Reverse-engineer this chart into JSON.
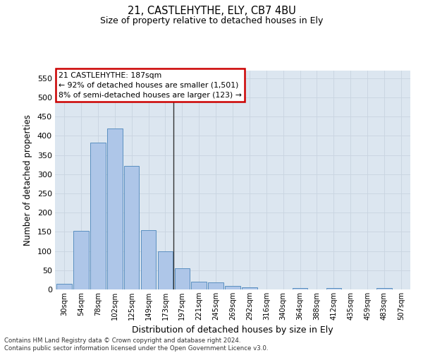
{
  "title1": "21, CASTLEHYTHE, ELY, CB7 4BU",
  "title2": "Size of property relative to detached houses in Ely",
  "xlabel": "Distribution of detached houses by size in Ely",
  "ylabel": "Number of detached properties",
  "categories": [
    "30sqm",
    "54sqm",
    "78sqm",
    "102sqm",
    "125sqm",
    "149sqm",
    "173sqm",
    "197sqm",
    "221sqm",
    "245sqm",
    "269sqm",
    "292sqm",
    "316sqm",
    "340sqm",
    "364sqm",
    "388sqm",
    "412sqm",
    "435sqm",
    "459sqm",
    "483sqm",
    "507sqm"
  ],
  "values": [
    14,
    152,
    382,
    420,
    322,
    154,
    100,
    55,
    20,
    18,
    9,
    5,
    0,
    0,
    4,
    0,
    4,
    0,
    0,
    4,
    0
  ],
  "bar_color": "#aec6e8",
  "bar_edge_color": "#5a8fc0",
  "vline_color": "#333333",
  "annotation_text_line1": "21 CASTLEHYTHE: 187sqm",
  "annotation_text_line2": "← 92% of detached houses are smaller (1,501)",
  "annotation_text_line3": "8% of semi-detached houses are larger (123) →",
  "annotation_box_edgecolor": "#cc0000",
  "annotation_box_facecolor": "#ffffff",
  "grid_color": "#c8d4e0",
  "background_color": "#dce6f0",
  "footer_line1": "Contains HM Land Registry data © Crown copyright and database right 2024.",
  "footer_line2": "Contains public sector information licensed under the Open Government Licence v3.0.",
  "ylim": [
    0,
    570
  ],
  "yticks": [
    0,
    50,
    100,
    150,
    200,
    250,
    300,
    350,
    400,
    450,
    500,
    550
  ],
  "vline_x_index": 6.5
}
